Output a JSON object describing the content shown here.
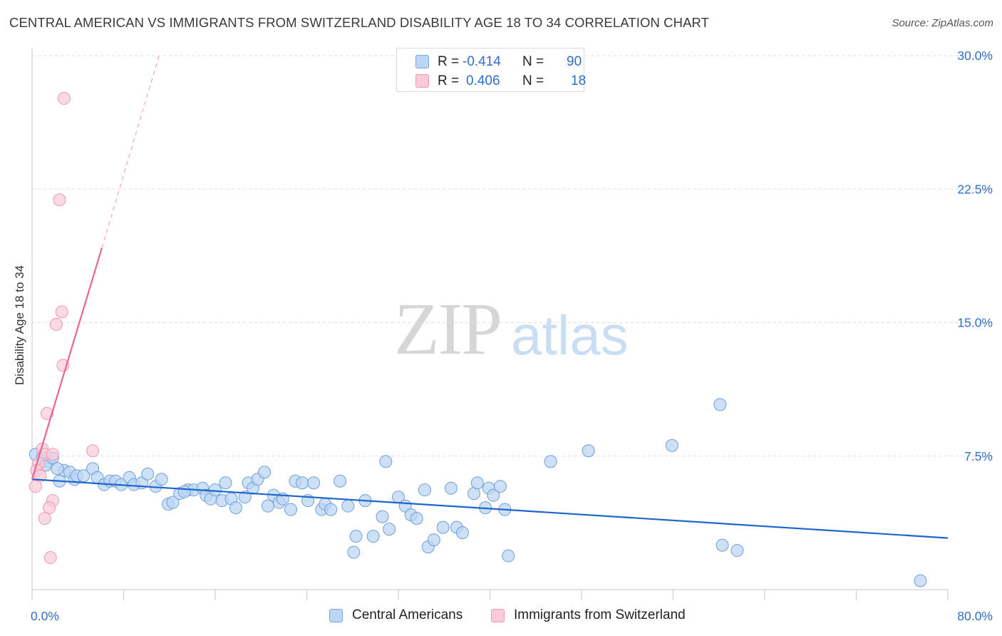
{
  "title": "CENTRAL AMERICAN VS IMMIGRANTS FROM SWITZERLAND DISABILITY AGE 18 TO 34 CORRELATION CHART",
  "source": "Source: ZipAtlas.com",
  "watermark": {
    "zip": "ZIP",
    "atlas": "atlas"
  },
  "legend": {
    "r_label": "R =",
    "n_label": "N =",
    "series1": {
      "r": "-0.414",
      "n": "90"
    },
    "series2": {
      "r": "0.406",
      "n": "18"
    }
  },
  "chart_data": {
    "type": "scatter",
    "title": "CENTRAL AMERICAN VS IMMIGRANTS FROM SWITZERLAND DISABILITY AGE 18 TO 34 CORRELATION CHART",
    "xlabel": "",
    "ylabel": "Disability Age 18 to 34",
    "xlim": [
      0,
      80
    ],
    "ylim": [
      0,
      30
    ],
    "x_tick_labels": [
      "0.0%",
      "80.0%"
    ],
    "y_tick_labels": [
      "7.5%",
      "15.0%",
      "22.5%",
      "30.0%"
    ],
    "y_ticks": [
      7.5,
      15.0,
      22.5,
      30.0
    ],
    "grid": true,
    "legend_position": "bottom",
    "colors": {
      "blue": "#1f66cc",
      "blue_fill": "#bcd5f3",
      "pink": "#e8649a",
      "pink_fill": "#f9cbd8"
    },
    "series": [
      {
        "name": "Central Americans",
        "r": -0.414,
        "n": 90,
        "trend": {
          "x0": 0,
          "y0": 6.2,
          "x1": 80,
          "y1": 2.9
        },
        "points": [
          [
            0.3,
            7.6
          ],
          [
            0.9,
            7.4
          ],
          [
            1.5,
            7.2
          ],
          [
            1.2,
            7.0
          ],
          [
            2.4,
            6.1
          ],
          [
            2.8,
            6.7
          ],
          [
            3.3,
            6.6
          ],
          [
            3.7,
            6.2
          ],
          [
            3.9,
            6.4
          ],
          [
            4.5,
            6.4
          ],
          [
            5.3,
            6.8
          ],
          [
            5.7,
            6.3
          ],
          [
            6.3,
            5.9
          ],
          [
            6.8,
            6.1
          ],
          [
            7.3,
            6.1
          ],
          [
            7.8,
            5.9
          ],
          [
            8.5,
            6.3
          ],
          [
            8.9,
            5.9
          ],
          [
            9.6,
            6.0
          ],
          [
            10.1,
            6.5
          ],
          [
            10.8,
            5.8
          ],
          [
            11.3,
            6.2
          ],
          [
            11.9,
            4.8
          ],
          [
            12.3,
            4.9
          ],
          [
            12.9,
            5.4
          ],
          [
            13.6,
            5.6
          ],
          [
            14.1,
            5.6
          ],
          [
            14.9,
            5.7
          ],
          [
            15.2,
            5.3
          ],
          [
            15.6,
            5.1
          ],
          [
            16.0,
            5.6
          ],
          [
            16.6,
            5.0
          ],
          [
            16.9,
            6.0
          ],
          [
            17.4,
            5.1
          ],
          [
            17.8,
            4.6
          ],
          [
            18.6,
            5.2
          ],
          [
            18.9,
            6.0
          ],
          [
            19.3,
            5.7
          ],
          [
            19.7,
            6.2
          ],
          [
            20.3,
            6.6
          ],
          [
            21.1,
            5.3
          ],
          [
            21.6,
            4.9
          ],
          [
            21.9,
            5.1
          ],
          [
            22.6,
            4.5
          ],
          [
            23.0,
            6.1
          ],
          [
            23.6,
            6.0
          ],
          [
            24.1,
            5.0
          ],
          [
            24.6,
            6.0
          ],
          [
            25.3,
            4.5
          ],
          [
            25.6,
            4.8
          ],
          [
            26.1,
            4.5
          ],
          [
            26.9,
            6.1
          ],
          [
            27.6,
            4.7
          ],
          [
            28.1,
            2.1
          ],
          [
            28.3,
            3.0
          ],
          [
            29.1,
            5.0
          ],
          [
            29.8,
            3.0
          ],
          [
            30.6,
            4.1
          ],
          [
            30.9,
            7.2
          ],
          [
            31.2,
            3.4
          ],
          [
            32.0,
            5.2
          ],
          [
            32.6,
            4.7
          ],
          [
            33.1,
            4.2
          ],
          [
            33.6,
            4.0
          ],
          [
            34.3,
            5.6
          ],
          [
            34.6,
            2.4
          ],
          [
            35.1,
            2.8
          ],
          [
            35.9,
            3.5
          ],
          [
            36.6,
            5.7
          ],
          [
            37.1,
            3.5
          ],
          [
            37.6,
            3.2
          ],
          [
            38.6,
            5.4
          ],
          [
            38.9,
            6.0
          ],
          [
            39.6,
            4.6
          ],
          [
            39.9,
            5.7
          ],
          [
            40.3,
            5.3
          ],
          [
            40.9,
            5.8
          ],
          [
            41.3,
            4.5
          ],
          [
            41.6,
            1.9
          ],
          [
            45.3,
            7.2
          ],
          [
            48.6,
            7.8
          ],
          [
            55.9,
            8.1
          ],
          [
            60.1,
            10.4
          ],
          [
            60.3,
            2.5
          ],
          [
            61.6,
            2.2
          ],
          [
            77.6,
            0.5
          ],
          [
            1.8,
            7.4
          ],
          [
            2.2,
            6.8
          ],
          [
            13.3,
            5.5
          ],
          [
            20.6,
            4.7
          ]
        ]
      },
      {
        "name": "Immigrants from Switzerland",
        "r": 0.406,
        "n": 18,
        "trend": {
          "x0": 0,
          "y0": 6.2,
          "x1": 6.1,
          "y1": 19.2,
          "ext_x1": 11.1,
          "ext_y1": 30.0
        },
        "points": [
          [
            2.8,
            27.6
          ],
          [
            2.4,
            21.9
          ],
          [
            2.6,
            15.6
          ],
          [
            2.1,
            14.9
          ],
          [
            2.7,
            12.6
          ],
          [
            1.3,
            9.9
          ],
          [
            5.3,
            7.8
          ],
          [
            0.9,
            7.9
          ],
          [
            1.1,
            7.6
          ],
          [
            1.8,
            7.6
          ],
          [
            0.6,
            7.1
          ],
          [
            0.4,
            6.7
          ],
          [
            0.7,
            6.4
          ],
          [
            0.3,
            5.8
          ],
          [
            1.8,
            5.0
          ],
          [
            1.5,
            4.6
          ],
          [
            1.1,
            4.0
          ],
          [
            1.6,
            1.8
          ]
        ]
      }
    ]
  }
}
